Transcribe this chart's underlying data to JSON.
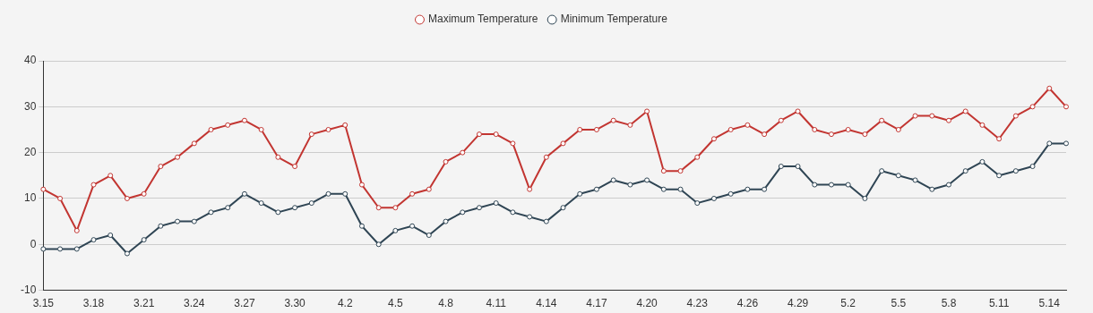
{
  "chart_data": {
    "type": "line",
    "categories": [
      "3.15",
      null,
      null,
      "3.18",
      null,
      null,
      "3.21",
      null,
      null,
      "3.24",
      null,
      null,
      "3.27",
      null,
      null,
      "3.30",
      null,
      null,
      "4.2",
      null,
      null,
      "4.5",
      null,
      null,
      "4.8",
      null,
      null,
      "4.11",
      null,
      null,
      "4.14",
      null,
      null,
      "4.17",
      null,
      null,
      "4.20",
      null,
      null,
      "4.23",
      null,
      null,
      "4.26",
      null,
      null,
      "4.29",
      null,
      null,
      "5.2",
      null,
      null,
      "5.5",
      null,
      null,
      "5.8",
      null,
      null,
      "5.11",
      null,
      null,
      "5.14",
      null
    ],
    "series": [
      {
        "name": "Maximum Temperature",
        "color": "#c23531",
        "values": [
          12,
          10,
          3,
          13,
          15,
          10,
          11,
          17,
          19,
          22,
          25,
          26,
          27,
          25,
          19,
          17,
          24,
          25,
          26,
          13,
          8,
          8,
          11,
          12,
          18,
          20,
          24,
          24,
          22,
          12,
          19,
          22,
          25,
          25,
          27,
          26,
          29,
          16,
          16,
          19,
          23,
          25,
          26,
          24,
          27,
          29,
          25,
          24,
          25,
          24,
          27,
          25,
          28,
          28,
          27,
          29,
          26,
          23,
          28,
          30,
          34,
          30
        ]
      },
      {
        "name": "Minimum Temperature",
        "color": "#2f4554",
        "values": [
          -1,
          -1,
          -1,
          1,
          2,
          -2,
          1,
          4,
          5,
          5,
          7,
          8,
          11,
          9,
          7,
          8,
          9,
          11,
          11,
          4,
          0,
          3,
          4,
          2,
          5,
          7,
          8,
          9,
          7,
          6,
          5,
          8,
          11,
          12,
          14,
          13,
          14,
          12,
          12,
          9,
          10,
          11,
          12,
          12,
          17,
          17,
          13,
          13,
          13,
          10,
          16,
          15,
          14,
          12,
          13,
          16,
          18,
          15,
          16,
          17,
          22,
          22
        ]
      }
    ],
    "ylim": [
      -10,
      40
    ],
    "yticks": [
      -10,
      0,
      10,
      20,
      30,
      40
    ],
    "grid": "y",
    "legend": "top",
    "marker": "circle",
    "line_style": "solid"
  }
}
